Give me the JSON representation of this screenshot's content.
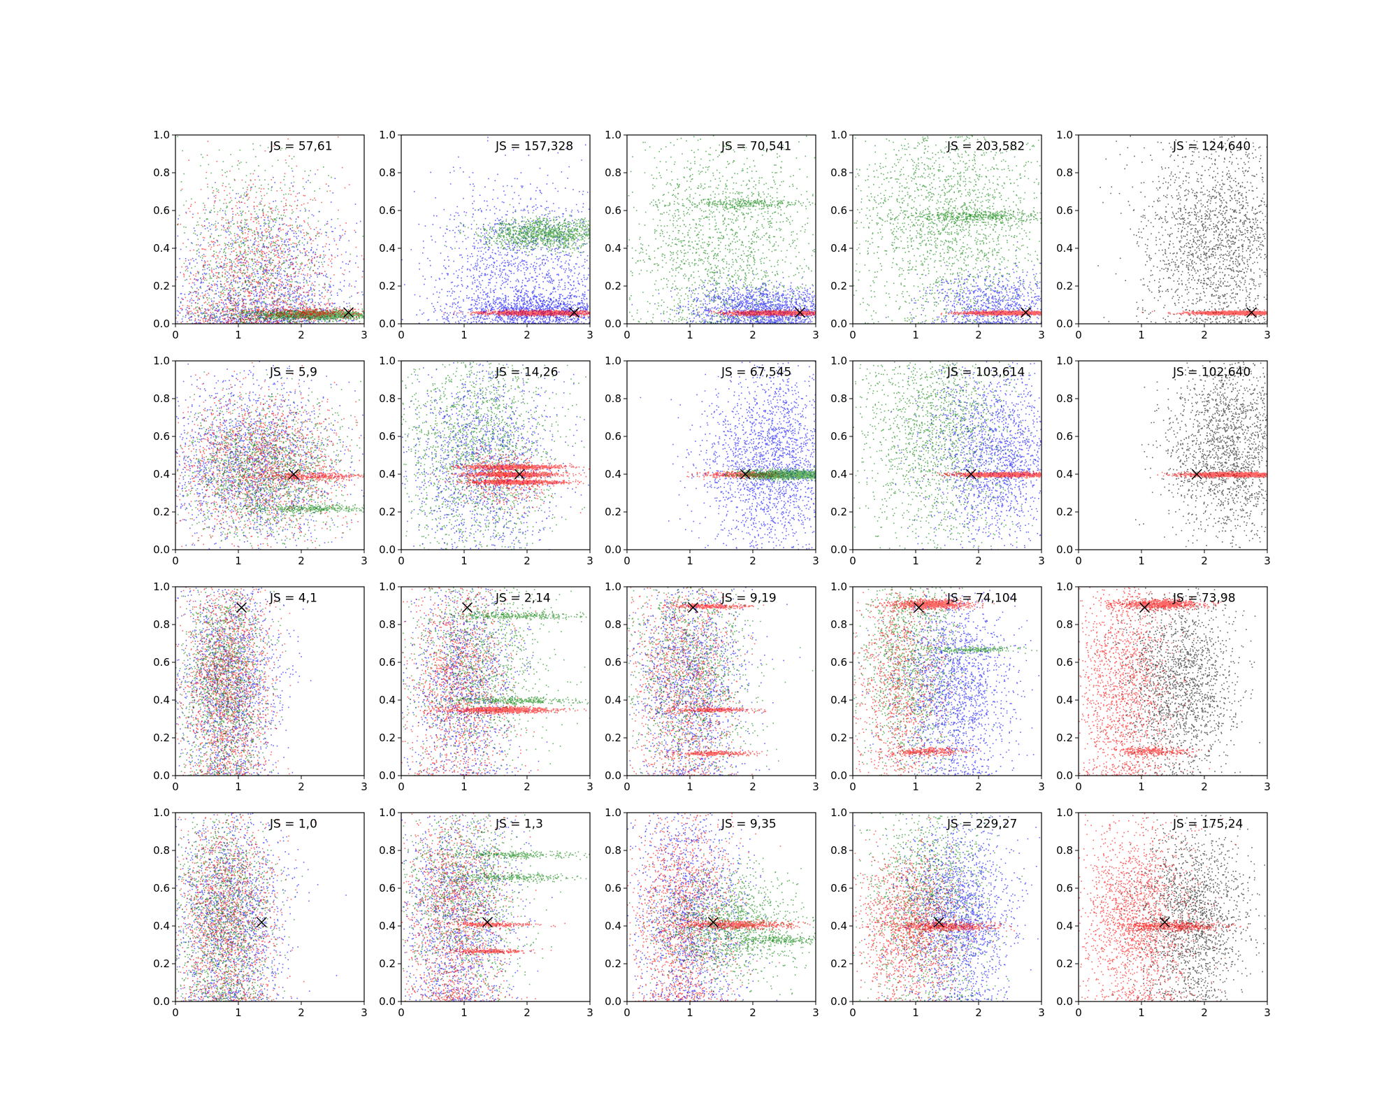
{
  "colors": {
    "red": "#ff0000",
    "green": "#008000",
    "blue": "#0000ff",
    "black": "#000000",
    "marker": "#000000"
  },
  "chart_data": {
    "type": "scatter",
    "rows": 4,
    "cols": 5,
    "xlim": [
      0,
      3
    ],
    "ylim": [
      0,
      1
    ],
    "xticks": [
      "0",
      "1",
      "2",
      "3"
    ],
    "yticks": [
      "0.0",
      "0.2",
      "0.4",
      "0.6",
      "0.8",
      "1.0"
    ],
    "grid": false,
    "legend": "none",
    "panels": [
      {
        "label": "JS = 57,61",
        "marker": [
          2.75,
          0.06
        ],
        "series": [
          {
            "color": "blue",
            "n": 1600,
            "cx": 1.4,
            "cy": 0.15,
            "sx": 0.75,
            "sy": 0.25,
            "ymin": 0
          },
          {
            "color": "red",
            "n": 1400,
            "cx": 1.3,
            "cy": 0.2,
            "sx": 0.7,
            "sy": 0.28,
            "ymin": 0
          },
          {
            "color": "green",
            "n": 1000,
            "cx": 1.2,
            "cy": 0.3,
            "sx": 0.6,
            "sy": 0.3,
            "ymin": 0
          },
          {
            "color": "green",
            "n": 1500,
            "cx": 2.2,
            "cy": 0.05,
            "sx": 0.45,
            "sy": 0.012,
            "ymin": 0
          },
          {
            "color": "red",
            "n": 300,
            "cx": 2.2,
            "cy": 0.06,
            "sx": 0.45,
            "sy": 0.012,
            "ymin": 0
          }
        ]
      },
      {
        "label": "JS = 157,328",
        "marker": [
          2.75,
          0.06
        ],
        "series": [
          {
            "color": "blue",
            "n": 1800,
            "cx": 2.0,
            "cy": 0.25,
            "sx": 0.75,
            "sy": 0.25,
            "ymin": 0
          },
          {
            "color": "green",
            "n": 1200,
            "cx": 2.3,
            "cy": 0.48,
            "sx": 0.5,
            "sy": 0.04
          },
          {
            "color": "blue",
            "n": 800,
            "cx": 2.2,
            "cy": 0.08,
            "sx": 0.6,
            "sy": 0.04,
            "ymin": 0
          },
          {
            "color": "red",
            "n": 1500,
            "cx": 2.25,
            "cy": 0.06,
            "sx": 0.45,
            "sy": 0.006
          }
        ]
      },
      {
        "label": "JS = 70,541",
        "marker": [
          2.75,
          0.06
        ],
        "series": [
          {
            "color": "green",
            "n": 1800,
            "cx": 1.5,
            "cy": 0.4,
            "sx": 0.8,
            "sy": 0.3,
            "ymin": 0
          },
          {
            "color": "green",
            "n": 250,
            "cx": 1.9,
            "cy": 0.64,
            "sx": 0.5,
            "sy": 0.012
          },
          {
            "color": "blue",
            "n": 1600,
            "cx": 2.2,
            "cy": 0.08,
            "sx": 0.6,
            "sy": 0.06,
            "ymin": 0
          },
          {
            "color": "red",
            "n": 1200,
            "cx": 2.35,
            "cy": 0.06,
            "sx": 0.4,
            "sy": 0.006
          }
        ]
      },
      {
        "label": "JS = 203,582",
        "marker": [
          2.75,
          0.06
        ],
        "series": [
          {
            "color": "green",
            "n": 2000,
            "cx": 1.5,
            "cy": 0.55,
            "sx": 0.8,
            "sy": 0.3,
            "ymin": 0
          },
          {
            "color": "green",
            "n": 400,
            "cx": 1.9,
            "cy": 0.57,
            "sx": 0.5,
            "sy": 0.018
          },
          {
            "color": "blue",
            "n": 900,
            "cx": 2.3,
            "cy": 0.1,
            "sx": 0.55,
            "sy": 0.09,
            "ymin": 0
          },
          {
            "color": "red",
            "n": 1200,
            "cx": 2.45,
            "cy": 0.06,
            "sx": 0.35,
            "sy": 0.005
          }
        ]
      },
      {
        "label": "JS = 124,640",
        "marker": [
          2.75,
          0.06
        ],
        "series": [
          {
            "color": "black",
            "n": 2000,
            "cx": 2.2,
            "cy": 0.45,
            "sx": 0.6,
            "sy": 0.28,
            "ymin": 0
          },
          {
            "color": "red",
            "n": 1200,
            "cx": 2.45,
            "cy": 0.06,
            "sx": 0.35,
            "sy": 0.005
          }
        ]
      },
      {
        "label": "JS = 5,9",
        "marker": [
          1.88,
          0.4
        ],
        "series": [
          {
            "color": "blue",
            "n": 1800,
            "cx": 1.2,
            "cy": 0.45,
            "sx": 0.7,
            "sy": 0.22
          },
          {
            "color": "red",
            "n": 1600,
            "cx": 1.3,
            "cy": 0.45,
            "sx": 0.7,
            "sy": 0.2
          },
          {
            "color": "green",
            "n": 1600,
            "cx": 1.4,
            "cy": 0.42,
            "sx": 0.65,
            "sy": 0.18
          },
          {
            "color": "green",
            "n": 300,
            "cx": 2.2,
            "cy": 0.22,
            "sx": 0.5,
            "sy": 0.01
          },
          {
            "color": "red",
            "n": 400,
            "cx": 2.2,
            "cy": 0.39,
            "sx": 0.5,
            "sy": 0.01
          }
        ]
      },
      {
        "label": "JS = 14,26",
        "marker": [
          1.88,
          0.4
        ],
        "series": [
          {
            "color": "green",
            "n": 1800,
            "cx": 1.2,
            "cy": 0.55,
            "sx": 0.6,
            "sy": 0.3
          },
          {
            "color": "blue",
            "n": 1400,
            "cx": 1.3,
            "cy": 0.45,
            "sx": 0.6,
            "sy": 0.25
          },
          {
            "color": "red",
            "n": 700,
            "cx": 1.8,
            "cy": 0.44,
            "sx": 0.4,
            "sy": 0.006
          },
          {
            "color": "red",
            "n": 700,
            "cx": 1.8,
            "cy": 0.4,
            "sx": 0.4,
            "sy": 0.006
          },
          {
            "color": "red",
            "n": 700,
            "cx": 1.8,
            "cy": 0.36,
            "sx": 0.4,
            "sy": 0.006
          },
          {
            "color": "red",
            "n": 400,
            "cx": 1.6,
            "cy": 0.38,
            "sx": 0.35,
            "sy": 0.08
          }
        ]
      },
      {
        "label": "JS = 67,545",
        "marker": [
          1.88,
          0.4
        ],
        "series": [
          {
            "color": "blue",
            "n": 2200,
            "cx": 2.3,
            "cy": 0.45,
            "sx": 0.55,
            "sy": 0.25
          },
          {
            "color": "red",
            "n": 400,
            "cx": 1.8,
            "cy": 0.4,
            "sx": 0.3,
            "sy": 0.008
          },
          {
            "color": "green",
            "n": 1400,
            "cx": 2.55,
            "cy": 0.4,
            "sx": 0.35,
            "sy": 0.012
          }
        ]
      },
      {
        "label": "JS = 103,614",
        "marker": [
          1.88,
          0.4
        ],
        "series": [
          {
            "color": "green",
            "n": 1800,
            "cx": 1.3,
            "cy": 0.6,
            "sx": 0.6,
            "sy": 0.3
          },
          {
            "color": "blue",
            "n": 1800,
            "cx": 2.3,
            "cy": 0.5,
            "sx": 0.55,
            "sy": 0.22
          },
          {
            "color": "red",
            "n": 1300,
            "cx": 2.4,
            "cy": 0.4,
            "sx": 0.4,
            "sy": 0.006
          }
        ]
      },
      {
        "label": "JS = 102,640",
        "marker": [
          1.88,
          0.4
        ],
        "series": [
          {
            "color": "black",
            "n": 2000,
            "cx": 2.4,
            "cy": 0.55,
            "sx": 0.5,
            "sy": 0.25
          },
          {
            "color": "red",
            "n": 1300,
            "cx": 2.45,
            "cy": 0.4,
            "sx": 0.4,
            "sy": 0.006
          }
        ]
      },
      {
        "label": "JS = 4,1",
        "marker": [
          1.05,
          0.89
        ],
        "series": [
          {
            "color": "blue",
            "n": 1600,
            "cx": 0.85,
            "cy": 0.5,
            "sx": 0.4,
            "sy": 0.3,
            "ymin": 0
          },
          {
            "color": "red",
            "n": 1800,
            "cx": 0.8,
            "cy": 0.5,
            "sx": 0.35,
            "sy": 0.3,
            "ymin": 0
          },
          {
            "color": "green",
            "n": 1400,
            "cx": 0.75,
            "cy": 0.5,
            "sx": 0.35,
            "sy": 0.3,
            "ymin": 0
          }
        ]
      },
      {
        "label": "JS = 2,14",
        "marker": [
          1.05,
          0.89
        ],
        "series": [
          {
            "color": "red",
            "n": 1400,
            "cx": 0.9,
            "cy": 0.5,
            "sx": 0.4,
            "sy": 0.3,
            "ymin": 0
          },
          {
            "color": "blue",
            "n": 1200,
            "cx": 1.0,
            "cy": 0.5,
            "sx": 0.45,
            "sy": 0.3,
            "ymin": 0
          },
          {
            "color": "green",
            "n": 1200,
            "cx": 1.2,
            "cy": 0.6,
            "sx": 0.6,
            "sy": 0.28
          },
          {
            "color": "green",
            "n": 300,
            "cx": 1.8,
            "cy": 0.85,
            "sx": 0.5,
            "sy": 0.01
          },
          {
            "color": "green",
            "n": 300,
            "cx": 1.8,
            "cy": 0.4,
            "sx": 0.5,
            "sy": 0.01
          },
          {
            "color": "red",
            "n": 900,
            "cx": 1.6,
            "cy": 0.35,
            "sx": 0.4,
            "sy": 0.008
          }
        ]
      },
      {
        "label": "JS = 9,19",
        "marker": [
          1.05,
          0.89
        ],
        "series": [
          {
            "color": "red",
            "n": 1400,
            "cx": 0.9,
            "cy": 0.5,
            "sx": 0.4,
            "sy": 0.3,
            "ymin": 0
          },
          {
            "color": "blue",
            "n": 1400,
            "cx": 1.0,
            "cy": 0.5,
            "sx": 0.45,
            "sy": 0.3,
            "ymin": 0
          },
          {
            "color": "green",
            "n": 1200,
            "cx": 1.0,
            "cy": 0.55,
            "sx": 0.5,
            "sy": 0.3
          },
          {
            "color": "red",
            "n": 300,
            "cx": 1.4,
            "cy": 0.35,
            "sx": 0.3,
            "sy": 0.006
          },
          {
            "color": "red",
            "n": 300,
            "cx": 1.4,
            "cy": 0.12,
            "sx": 0.3,
            "sy": 0.006
          },
          {
            "color": "red",
            "n": 300,
            "cx": 1.3,
            "cy": 0.9,
            "sx": 0.3,
            "sy": 0.006
          }
        ]
      },
      {
        "label": "JS = 74,104",
        "marker": [
          1.05,
          0.89
        ],
        "series": [
          {
            "color": "green",
            "n": 1400,
            "cx": 0.9,
            "cy": 0.6,
            "sx": 0.4,
            "sy": 0.3
          },
          {
            "color": "blue",
            "n": 1800,
            "cx": 1.6,
            "cy": 0.45,
            "sx": 0.45,
            "sy": 0.25,
            "ymin": 0
          },
          {
            "color": "red",
            "n": 1000,
            "cx": 0.7,
            "cy": 0.5,
            "sx": 0.35,
            "sy": 0.3,
            "ymin": 0
          },
          {
            "color": "red",
            "n": 800,
            "cx": 1.25,
            "cy": 0.91,
            "sx": 0.3,
            "sy": 0.012
          },
          {
            "color": "red",
            "n": 300,
            "cx": 1.2,
            "cy": 0.13,
            "sx": 0.3,
            "sy": 0.01
          },
          {
            "color": "green",
            "n": 200,
            "cx": 1.9,
            "cy": 0.67,
            "sx": 0.4,
            "sy": 0.008
          }
        ]
      },
      {
        "label": "JS = 73,98",
        "marker": [
          1.05,
          0.89
        ],
        "series": [
          {
            "color": "black",
            "n": 1800,
            "cx": 1.6,
            "cy": 0.5,
            "sx": 0.45,
            "sy": 0.25,
            "ymin": 0
          },
          {
            "color": "red",
            "n": 1600,
            "cx": 0.7,
            "cy": 0.5,
            "sx": 0.4,
            "sy": 0.3,
            "ymin": 0
          },
          {
            "color": "red",
            "n": 800,
            "cx": 1.3,
            "cy": 0.91,
            "sx": 0.35,
            "sy": 0.012
          },
          {
            "color": "red",
            "n": 300,
            "cx": 1.2,
            "cy": 0.13,
            "sx": 0.3,
            "sy": 0.012
          }
        ]
      },
      {
        "label": "JS = 1,0",
        "marker": [
          1.37,
          0.42
        ],
        "series": [
          {
            "color": "blue",
            "n": 1600,
            "cx": 0.85,
            "cy": 0.45,
            "sx": 0.45,
            "sy": 0.3,
            "ymin": 0
          },
          {
            "color": "red",
            "n": 1600,
            "cx": 0.8,
            "cy": 0.45,
            "sx": 0.4,
            "sy": 0.3,
            "ymin": 0
          },
          {
            "color": "green",
            "n": 1400,
            "cx": 0.75,
            "cy": 0.45,
            "sx": 0.4,
            "sy": 0.3,
            "ymin": 0
          }
        ]
      },
      {
        "label": "JS = 1,3",
        "marker": [
          1.37,
          0.42
        ],
        "series": [
          {
            "color": "blue",
            "n": 1400,
            "cx": 0.9,
            "cy": 0.45,
            "sx": 0.45,
            "sy": 0.3,
            "ymin": 0
          },
          {
            "color": "red",
            "n": 1400,
            "cx": 0.85,
            "cy": 0.45,
            "sx": 0.4,
            "sy": 0.3,
            "ymin": 0
          },
          {
            "color": "green",
            "n": 1200,
            "cx": 1.0,
            "cy": 0.55,
            "sx": 0.5,
            "sy": 0.3
          },
          {
            "color": "green",
            "n": 250,
            "cx": 1.8,
            "cy": 0.78,
            "sx": 0.5,
            "sy": 0.01
          },
          {
            "color": "green",
            "n": 250,
            "cx": 1.8,
            "cy": 0.66,
            "sx": 0.5,
            "sy": 0.01
          },
          {
            "color": "red",
            "n": 250,
            "cx": 1.5,
            "cy": 0.41,
            "sx": 0.35,
            "sy": 0.006
          },
          {
            "color": "red",
            "n": 250,
            "cx": 1.4,
            "cy": 0.27,
            "sx": 0.3,
            "sy": 0.006
          }
        ]
      },
      {
        "label": "JS = 9,35",
        "marker": [
          1.37,
          0.42
        ],
        "series": [
          {
            "color": "red",
            "n": 1600,
            "cx": 0.9,
            "cy": 0.45,
            "sx": 0.4,
            "sy": 0.3,
            "ymin": 0
          },
          {
            "color": "blue",
            "n": 1400,
            "cx": 1.0,
            "cy": 0.5,
            "sx": 0.45,
            "sy": 0.3,
            "ymin": 0
          },
          {
            "color": "green",
            "n": 1400,
            "cx": 1.6,
            "cy": 0.4,
            "sx": 0.55,
            "sy": 0.14
          },
          {
            "color": "red",
            "n": 600,
            "cx": 1.75,
            "cy": 0.41,
            "sx": 0.45,
            "sy": 0.01
          },
          {
            "color": "green",
            "n": 200,
            "cx": 2.5,
            "cy": 0.33,
            "sx": 0.35,
            "sy": 0.012
          }
        ]
      },
      {
        "label": "JS = 229,27",
        "marker": [
          1.37,
          0.42
        ],
        "series": [
          {
            "color": "green",
            "n": 1500,
            "cx": 1.2,
            "cy": 0.55,
            "sx": 0.5,
            "sy": 0.3,
            "ymin": 0
          },
          {
            "color": "blue",
            "n": 1800,
            "cx": 1.7,
            "cy": 0.45,
            "sx": 0.45,
            "sy": 0.25,
            "ymin": 0
          },
          {
            "color": "red",
            "n": 1400,
            "cx": 0.9,
            "cy": 0.4,
            "sx": 0.4,
            "sy": 0.2,
            "ymin": 0
          },
          {
            "color": "red",
            "n": 500,
            "cx": 1.5,
            "cy": 0.4,
            "sx": 0.4,
            "sy": 0.012
          }
        ]
      },
      {
        "label": "JS = 175,24",
        "marker": [
          1.37,
          0.42
        ],
        "series": [
          {
            "color": "black",
            "n": 1800,
            "cx": 1.8,
            "cy": 0.45,
            "sx": 0.45,
            "sy": 0.25,
            "ymin": 0
          },
          {
            "color": "red",
            "n": 1800,
            "cx": 0.9,
            "cy": 0.45,
            "sx": 0.45,
            "sy": 0.25,
            "ymin": 0
          },
          {
            "color": "red",
            "n": 500,
            "cx": 1.5,
            "cy": 0.4,
            "sx": 0.4,
            "sy": 0.012
          }
        ]
      }
    ]
  }
}
